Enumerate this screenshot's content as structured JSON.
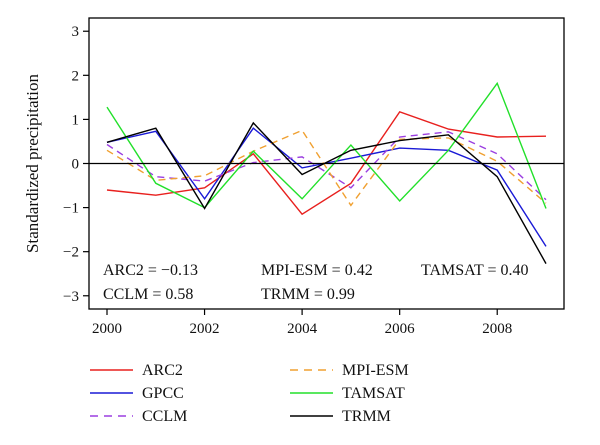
{
  "chart_data": {
    "type": "line",
    "xlabel": "",
    "ylabel": "Standardized precipitation",
    "xlim": [
      2000,
      2009
    ],
    "ylim": [
      -3.3,
      3.3
    ],
    "xticks": [
      2000,
      2002,
      2004,
      2006,
      2008
    ],
    "yticks": [
      -3,
      -2,
      -1,
      0,
      1,
      2,
      3
    ],
    "x": [
      2000,
      2001,
      2002,
      2003,
      2004,
      2005,
      2006,
      2007,
      2008,
      2009
    ],
    "zero_line": true,
    "grid": false,
    "legend_position": "below",
    "series": [
      {
        "name": "ARC2",
        "color": "#e8201e",
        "dash": "solid",
        "values": [
          -0.6,
          -0.72,
          -0.55,
          0.22,
          -1.15,
          -0.45,
          1.17,
          0.78,
          0.6,
          0.62
        ]
      },
      {
        "name": "GPCC",
        "color": "#1a1ad6",
        "dash": "solid",
        "values": [
          0.48,
          0.73,
          -0.8,
          0.8,
          -0.1,
          0.12,
          0.35,
          0.3,
          -0.15,
          -1.88
        ]
      },
      {
        "name": "CCLM",
        "color": "#9b3fe0",
        "dash": "dashed",
        "values": [
          0.43,
          -0.3,
          -0.4,
          0.02,
          0.15,
          -0.55,
          0.6,
          0.72,
          0.22,
          -0.82
        ]
      },
      {
        "name": "MPI-ESM",
        "color": "#f0a030",
        "dash": "dashed",
        "values": [
          0.3,
          -0.38,
          -0.28,
          0.28,
          0.75,
          -0.95,
          0.55,
          0.58,
          0.05,
          -0.9
        ]
      },
      {
        "name": "TAMSAT",
        "color": "#22e02a",
        "dash": "solid",
        "values": [
          1.28,
          -0.45,
          -1.0,
          0.28,
          -0.8,
          0.42,
          -0.85,
          0.3,
          1.82,
          -1.02
        ]
      },
      {
        "name": "TRMM",
        "color": "#000000",
        "dash": "solid",
        "values": [
          0.48,
          0.8,
          -1.02,
          0.92,
          -0.25,
          0.3,
          0.52,
          0.65,
          -0.3,
          -2.27
        ]
      }
    ],
    "annotations": [
      "ARC2 = −0.13",
      "CCLM = 0.58",
      "MPI-ESM = 0.42",
      "TRMM = 0.99",
      "TAMSAT = 0.40"
    ]
  }
}
